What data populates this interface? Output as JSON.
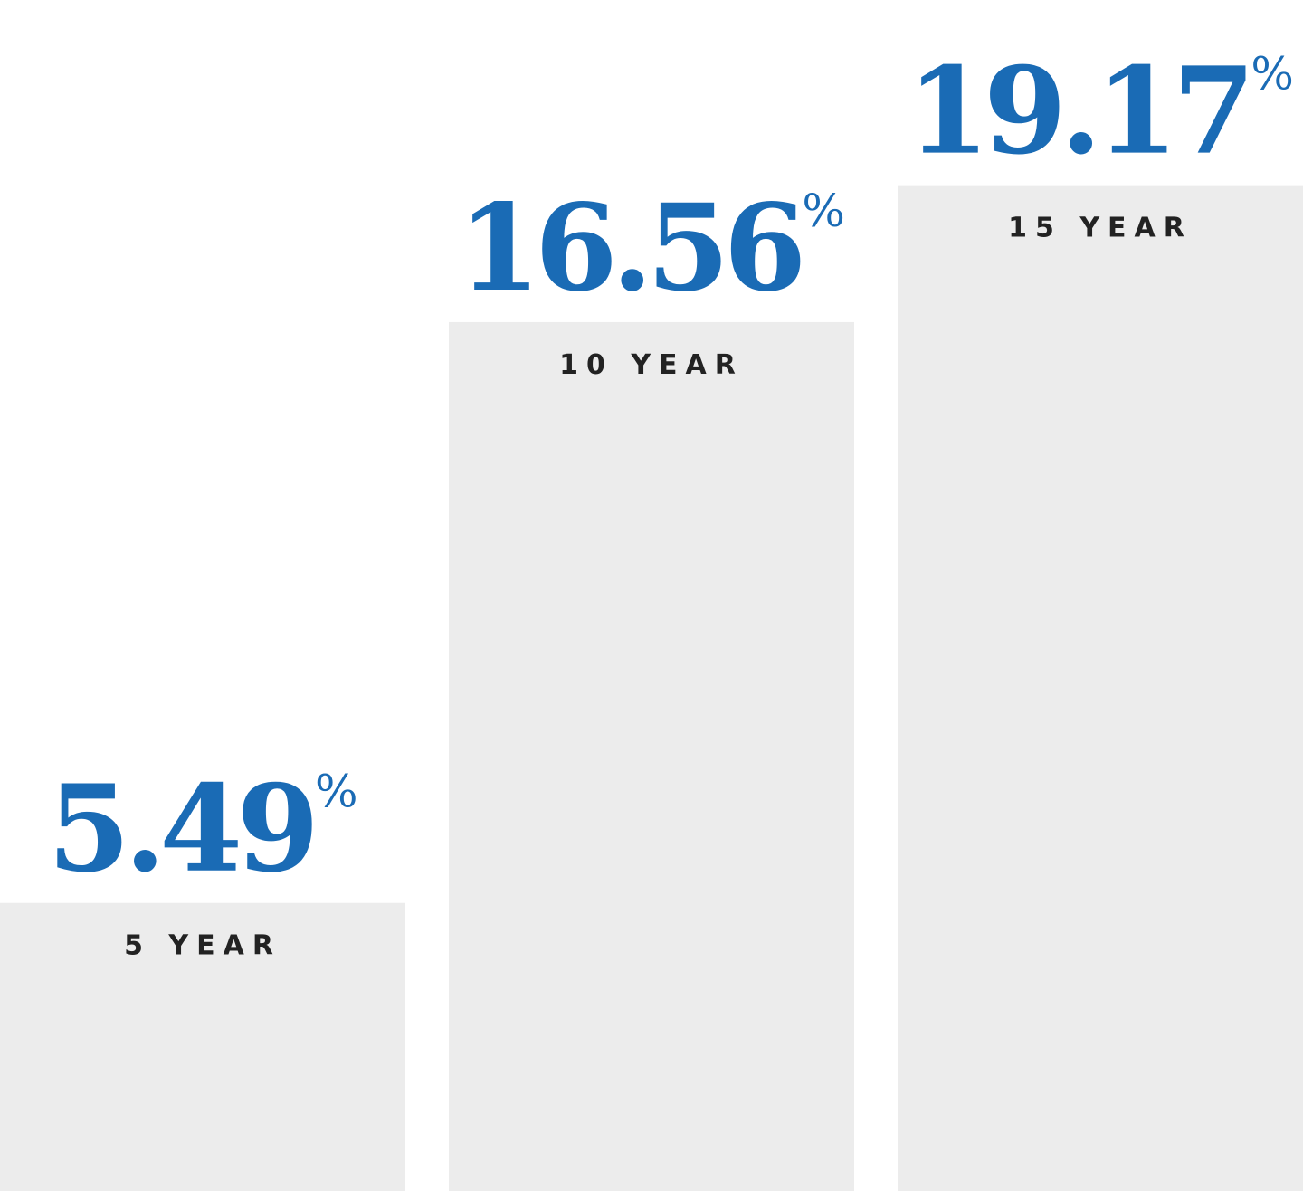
{
  "chart_data": {
    "type": "bar",
    "categories": [
      "5 YEAR",
      "10 YEAR",
      "15 YEAR"
    ],
    "values": [
      5.49,
      16.56,
      19.17
    ],
    "value_suffix": "%",
    "value_labels": [
      "5.49",
      "16.56",
      "19.17"
    ],
    "ylim": [
      0,
      22.7
    ],
    "grid": false,
    "legend": "none",
    "colors": {
      "bar": "#ececec",
      "value_text": "#1a6bb5",
      "category_text": "#222222",
      "background": "#ffffff"
    }
  }
}
